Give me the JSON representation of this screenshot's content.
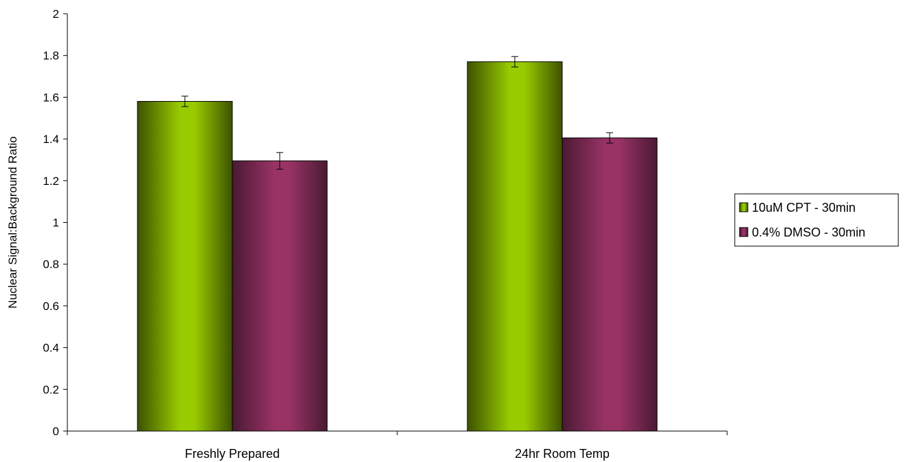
{
  "chart_data": {
    "type": "bar",
    "title": "",
    "xlabel": "",
    "ylabel": "Nuclear Signal:Background Ratio",
    "ylim": [
      0,
      2
    ],
    "yticks": [
      0,
      0.2,
      0.4,
      0.6,
      0.8,
      1,
      1.2,
      1.4,
      1.6,
      1.8,
      2
    ],
    "categories": [
      "Freshly Prepared",
      "24hr Room Temp"
    ],
    "series": [
      {
        "name": "10uM CPT - 30min",
        "values": [
          1.58,
          1.77
        ],
        "error": [
          0.025,
          0.025
        ],
        "color": "#99cc00",
        "dark_color": "#3d5200"
      },
      {
        "name": "0.4% DMSO - 30min",
        "values": [
          1.295,
          1.405
        ],
        "error": [
          0.04,
          0.025
        ],
        "color": "#993366",
        "dark_color": "#4a1a33"
      }
    ],
    "grid": false,
    "legend_position": "right"
  }
}
